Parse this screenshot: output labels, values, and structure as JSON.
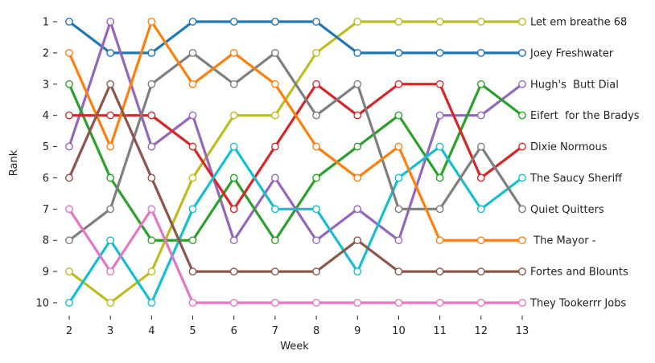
{
  "chart_data": {
    "type": "line",
    "title": "",
    "xlabel": "Week",
    "ylabel": "Rank",
    "x": [
      2,
      3,
      4,
      5,
      6,
      7,
      8,
      9,
      10,
      11,
      12,
      13
    ],
    "y_ticks": [
      1,
      2,
      3,
      4,
      5,
      6,
      7,
      8,
      9,
      10
    ],
    "ylim": [
      10,
      1
    ],
    "y_inverted": true,
    "grid": false,
    "legend": "labels at right end of each line",
    "series": [
      {
        "name": "Let em breathe 68",
        "color": "#bcbd22",
        "values": [
          9,
          10,
          9,
          6,
          4,
          4,
          2,
          1,
          1,
          1,
          1,
          1
        ]
      },
      {
        "name": "Joey Freshwater",
        "color": "#1f77b4",
        "values": [
          1,
          2,
          2,
          1,
          1,
          1,
          1,
          2,
          2,
          2,
          2,
          2
        ]
      },
      {
        "name": "Hugh's  Butt Dial",
        "color": "#9467bd",
        "values": [
          5,
          1,
          5,
          4,
          8,
          6,
          8,
          7,
          8,
          4,
          4,
          3
        ]
      },
      {
        "name": "Eifert  for the Bradys",
        "color": "#2ca02c",
        "values": [
          3,
          6,
          8,
          8,
          6,
          8,
          6,
          5,
          4,
          6,
          3,
          4
        ]
      },
      {
        "name": "Dixie Normous",
        "color": "#d62728",
        "values": [
          4,
          4,
          4,
          5,
          7,
          5,
          3,
          4,
          3,
          3,
          6,
          5
        ]
      },
      {
        "name": "The Saucy Sheriff",
        "color": "#17becf",
        "values": [
          10,
          8,
          10,
          7,
          5,
          7,
          7,
          9,
          6,
          5,
          7,
          6
        ]
      },
      {
        "name": "Quiet Quitters",
        "color": "#7f7f7f",
        "values": [
          8,
          7,
          3,
          2,
          3,
          2,
          4,
          3,
          7,
          7,
          5,
          7
        ]
      },
      {
        "name": " The Mayor -",
        "color": "#ff7f0e",
        "values": [
          2,
          5,
          1,
          3,
          2,
          3,
          5,
          6,
          5,
          8,
          8,
          8
        ]
      },
      {
        "name": "Fortes and Blounts",
        "color": "#8c564b",
        "values": [
          6,
          3,
          6,
          9,
          9,
          9,
          9,
          8,
          9,
          9,
          9,
          9
        ]
      },
      {
        "name": "They Tookerrr Jobs",
        "color": "#e377c2",
        "values": [
          7,
          9,
          7,
          10,
          10,
          10,
          10,
          10,
          10,
          10,
          10,
          10
        ]
      }
    ]
  }
}
